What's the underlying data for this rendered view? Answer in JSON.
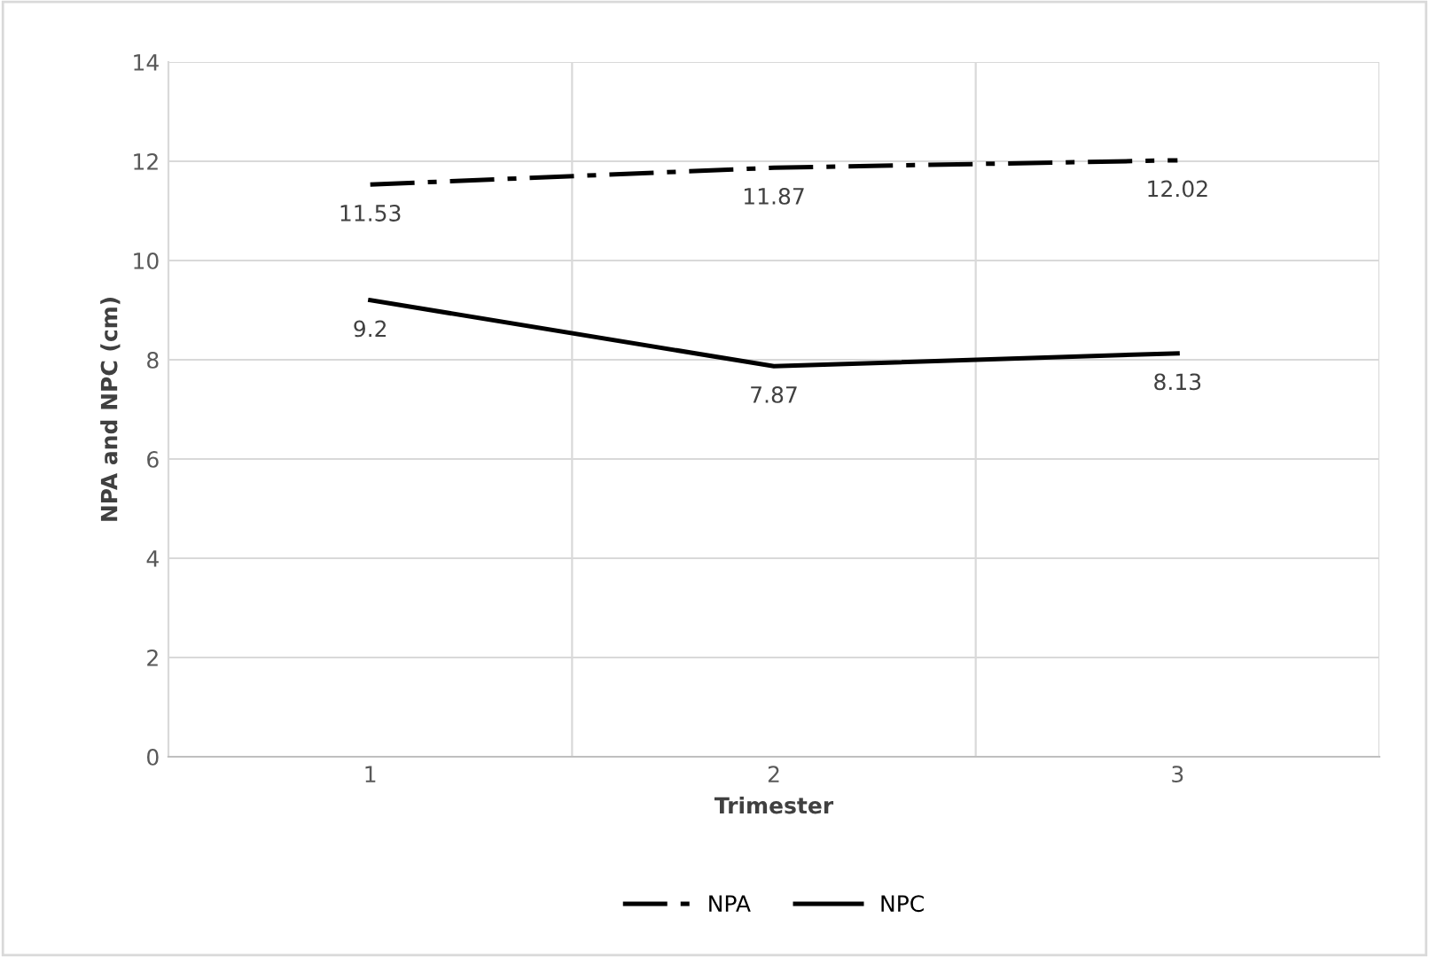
{
  "chart_data": {
    "type": "line",
    "xlabel": "Trimester",
    "ylabel": "NPA and NPC (cm)",
    "categories": [
      "1",
      "2",
      "3"
    ],
    "series": [
      {
        "name": "NPA",
        "color": "#000000",
        "line_style": "dashdot",
        "values": [
          11.53,
          11.87,
          12.02
        ]
      },
      {
        "name": "NPC",
        "color": "#000000",
        "line_style": "solid",
        "values": [
          9.2,
          7.87,
          8.13
        ]
      }
    ],
    "ylim": [
      0,
      14
    ],
    "yticks": [
      0,
      2,
      4,
      6,
      8,
      10,
      12,
      14
    ],
    "grid": true,
    "legend": "bottom",
    "data_labels": true,
    "marker": "none"
  }
}
